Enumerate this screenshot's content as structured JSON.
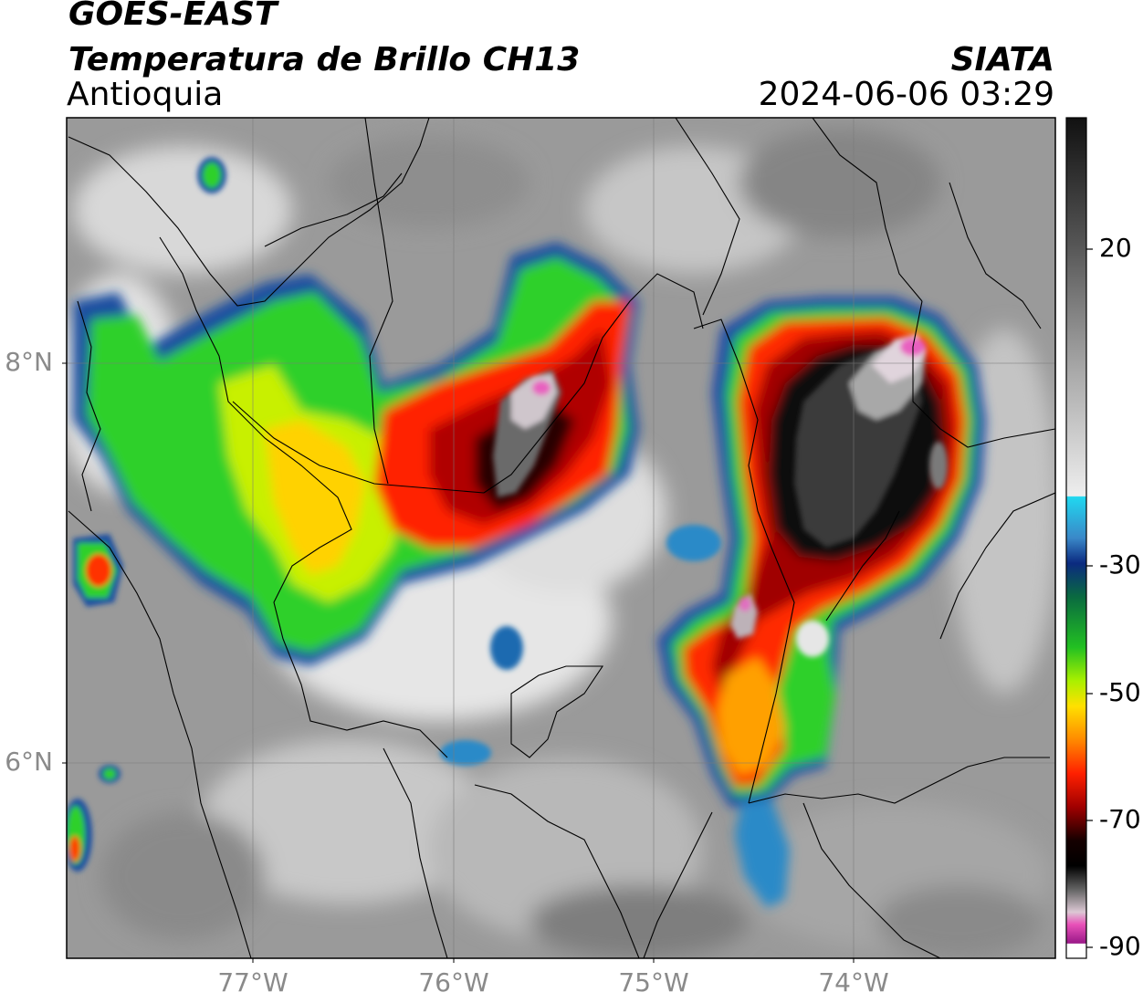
{
  "header": {
    "satellite": "GOES-EAST",
    "product": "Temperatura de Brillo CH13",
    "region": "Antioquia",
    "brand": "SIATA",
    "timestamp": "2024-06-06 03:29"
  },
  "map": {
    "lat_labels": [
      {
        "label": "8°N",
        "value": 8
      },
      {
        "label": "6°N",
        "value": 6
      }
    ],
    "lon_labels": [
      {
        "label": "77°W",
        "value": -77
      },
      {
        "label": "76°W",
        "value": -76
      },
      {
        "label": "75°W",
        "value": -75
      },
      {
        "label": "74°W",
        "value": -74
      }
    ]
  },
  "colorbar": {
    "ticks": [
      {
        "label": "20",
        "value": 20
      },
      {
        "label": "-30",
        "value": -30
      },
      {
        "label": "-50",
        "value": -50
      },
      {
        "label": "-70",
        "value": -70
      },
      {
        "label": "-90",
        "value": -90
      }
    ]
  }
}
